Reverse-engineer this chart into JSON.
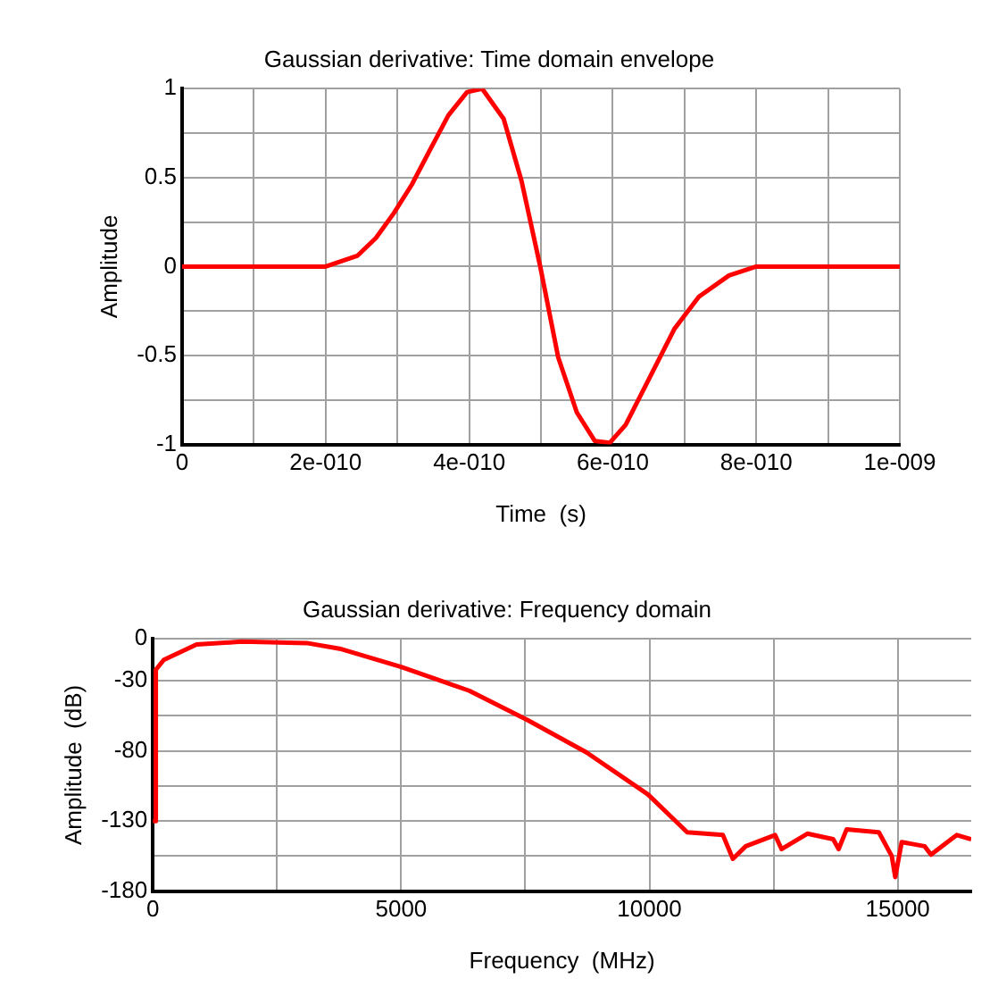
{
  "chart_data": [
    {
      "type": "line",
      "title": "Gaussian derivative: Time domain envelope",
      "xlabel": "Time  (s)",
      "ylabel": "Amplitude",
      "x": [
        0,
        2e-10,
        2.44e-10,
        2.7e-10,
        2.95e-10,
        3.2e-10,
        3.46e-10,
        3.71e-10,
        3.97e-10,
        4.18e-10,
        4.48e-10,
        4.73e-10,
        4.99e-10,
        5.24e-10,
        5.5e-10,
        5.75e-10,
        5.96e-10,
        6.18e-10,
        6.52e-10,
        6.86e-10,
        7.2e-10,
        7.62e-10,
        8e-10,
        1e-09
      ],
      "series": [
        {
          "color": "#ff0000",
          "values": [
            0,
            0,
            0.06,
            0.16,
            0.3,
            0.46,
            0.66,
            0.85,
            0.98,
            1,
            0.83,
            0.48,
            0,
            -0.51,
            -0.82,
            -0.98,
            -0.99,
            -0.89,
            -0.62,
            -0.35,
            -0.17,
            -0.05,
            0,
            0
          ]
        }
      ],
      "xlim": [
        0,
        1e-09
      ],
      "xticks": [
        {
          "value": 0,
          "label": "0"
        },
        {
          "value": 1e-10,
          "label": null
        },
        {
          "value": 2e-10,
          "label": "2e-010"
        },
        {
          "value": 3e-10,
          "label": null
        },
        {
          "value": 4e-10,
          "label": "4e-010"
        },
        {
          "value": 5e-10,
          "label": null
        },
        {
          "value": 6e-10,
          "label": "6e-010"
        },
        {
          "value": 7e-10,
          "label": null
        },
        {
          "value": 8e-10,
          "label": "8e-010"
        },
        {
          "value": 9e-10,
          "label": null
        },
        {
          "value": 1e-09,
          "label": "1e-009"
        }
      ],
      "ylim": [
        -1,
        1
      ],
      "yticks": [
        -1,
        {
          "value": -0.75,
          "label": null
        },
        -0.5,
        {
          "value": -0.25,
          "label": null
        },
        0,
        {
          "value": 0.25,
          "label": null
        },
        0.5,
        {
          "value": 0.75,
          "label": null
        },
        1
      ],
      "grid": true,
      "legend": false,
      "marker": "none",
      "line_style": "solid"
    },
    {
      "type": "line",
      "title": "Gaussian derivative: Frequency domain",
      "xlabel": "Frequency  (MHz)",
      "ylabel": "Amplitude  (dB)",
      "x": [
        0,
        50,
        60,
        220,
        880,
        1790,
        3100,
        3760,
        5000,
        6370,
        7550,
        8730,
        9970,
        10760,
        11480,
        11680,
        11940,
        12530,
        12660,
        13180,
        13700,
        13810,
        13970,
        14620,
        14880,
        14950,
        15080,
        15540,
        15670,
        16190,
        16480
      ],
      "series": [
        {
          "color": "#ff0000",
          "values": [
            -130,
            -130,
            -22,
            -15,
            -4,
            -2,
            -3,
            -7,
            -20,
            -37,
            -58,
            -81,
            -111,
            -138,
            -140,
            -157,
            -148,
            -140,
            -150,
            -139,
            -143,
            -150,
            -136,
            -138,
            -155,
            -170,
            -145,
            -148,
            -154,
            -140,
            -143
          ]
        }
      ],
      "xlim": [
        0,
        16480
      ],
      "xticks": [
        0,
        {
          "value": 2500,
          "label": null
        },
        5000,
        {
          "value": 7500,
          "label": null
        },
        10000,
        {
          "value": 12500,
          "label": null
        },
        15000
      ],
      "ylim": [
        -180,
        0
      ],
      "yticks": [
        -180,
        {
          "value": -155,
          "label": null
        },
        -130,
        {
          "value": -105,
          "label": null
        },
        -80,
        {
          "value": -55,
          "label": null
        },
        -30,
        0
      ],
      "grid": true,
      "legend": false,
      "marker": "none",
      "line_style": "solid"
    }
  ]
}
